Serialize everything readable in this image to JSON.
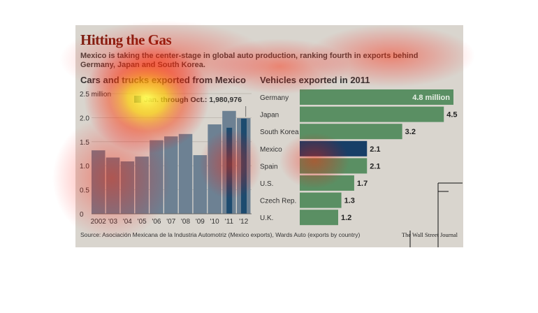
{
  "header": {
    "title": "Hitting the Gas",
    "subtitle": "Mexico is taking the center-stage in global auto production, ranking fourth in exports behind Germany, Japan and South Korea."
  },
  "footer": {
    "source": "Source:  Asociación Mexicana de la Industria Automotriz (Mexico exports), Wards Auto (exports by country)",
    "credit": "The Wall Street Journal"
  },
  "colors": {
    "left_bar": "#6d8193",
    "left_highlight": "#1d4b6f",
    "right_bar": "#5a8f63",
    "right_highlight": "#173f67"
  },
  "chart_data": [
    {
      "type": "bar",
      "title": "Cars and trucks exported from Mexico",
      "categories": [
        "2002",
        "'03",
        "'04",
        "'05",
        "'06",
        "'07",
        "'08",
        "'09",
        "'10",
        "'11",
        "'12"
      ],
      "values": [
        1.32,
        1.17,
        1.09,
        1.19,
        1.53,
        1.61,
        1.66,
        1.22,
        1.86,
        2.14,
        1.99
      ],
      "overlay": {
        "categories": [
          "'11",
          "'12"
        ],
        "values": [
          1.79,
          1.98
        ]
      },
      "ylim": [
        0,
        2.5
      ],
      "yticks": [
        "0",
        "0.5",
        "1.0",
        "1.5",
        "2.0",
        "2.5 million"
      ],
      "ytick_values": [
        0,
        0.5,
        1.0,
        1.5,
        2.0,
        2.5
      ],
      "annotation": "Jan. through Oct.: 1,980,976",
      "grid": true
    },
    {
      "type": "bar",
      "orientation": "horizontal",
      "title": "Vehicles exported in 2011",
      "categories": [
        "Germany",
        "Japan",
        "South Korea",
        "Mexico",
        "Spain",
        "U.S.",
        "Czech Rep.",
        "U.K."
      ],
      "values": [
        4.8,
        4.5,
        3.2,
        2.1,
        2.1,
        1.7,
        1.3,
        1.2
      ],
      "value_labels": [
        "4.8 million",
        "4.5",
        "3.2",
        "2.1",
        "2.1",
        "1.7",
        "1.3",
        "1.2"
      ],
      "highlight": "Mexico"
    }
  ]
}
